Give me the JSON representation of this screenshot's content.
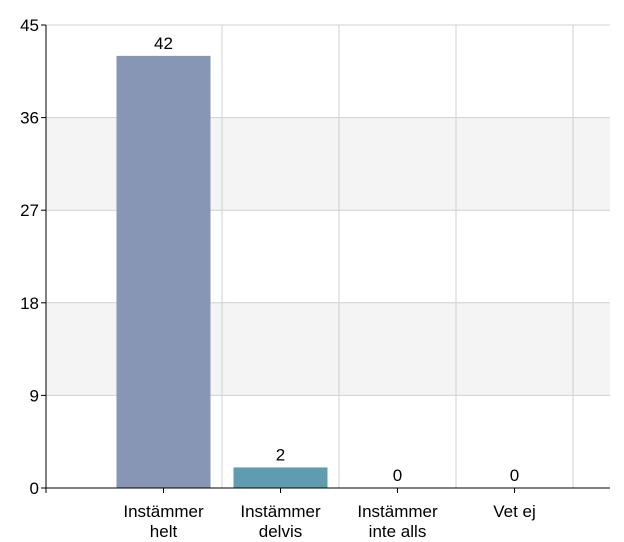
{
  "chart_data": {
    "type": "bar",
    "title": "",
    "xlabel": "",
    "ylabel": "",
    "categories": [
      [
        "Instämmer",
        "helt"
      ],
      [
        "Instämmer",
        "delvis"
      ],
      [
        "Instämmer",
        "inte alls"
      ],
      [
        "Vet ej"
      ]
    ],
    "values": [
      42,
      2,
      0,
      0
    ],
    "data_labels": [
      "42",
      "2",
      "0",
      "0"
    ],
    "bar_colors": [
      "#8696b4",
      "#5f9cb0",
      "#9aa7c4",
      "#9aa7c4"
    ],
    "ylim": [
      0,
      45
    ],
    "yticks": [
      0,
      9,
      18,
      27,
      36,
      45
    ],
    "ytick_labels": [
      "0",
      "9",
      "18",
      "27",
      "36",
      "45"
    ],
    "grid": true,
    "band_color": "#f4f4f4",
    "grid_color": "#d0d0d0",
    "axis_color": "#000000",
    "legend": "none"
  }
}
